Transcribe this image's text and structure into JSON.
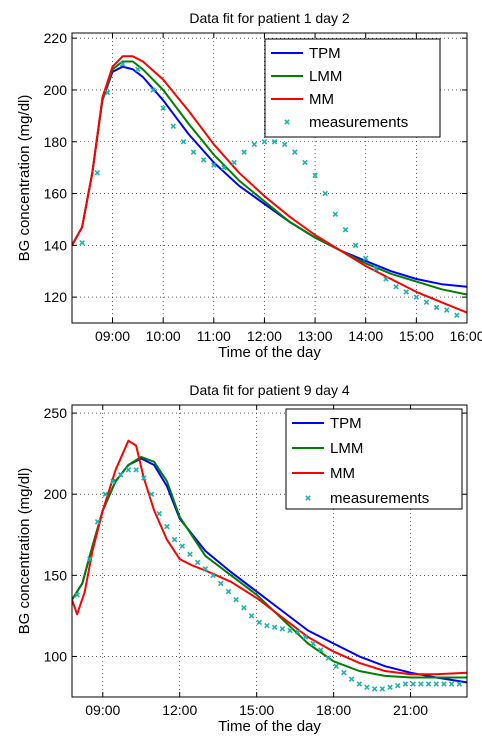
{
  "chart_data": [
    {
      "type": "line",
      "title": "Data fit for patient 1 day 2",
      "xlabel": "Time of the day",
      "ylabel": "BG concentration (mg/dl)",
      "xlim": [
        8.2,
        16.0
      ],
      "ylim": [
        110,
        222
      ],
      "xticks": [
        9,
        10,
        11,
        12,
        13,
        14,
        15,
        16
      ],
      "xtick_labels": [
        "09:00",
        "10:00",
        "11:00",
        "12:00",
        "13:00",
        "14:00",
        "15:00",
        "16:00"
      ],
      "yticks": [
        120,
        140,
        160,
        180,
        200,
        220
      ],
      "grid": true,
      "legend_position": "top-right",
      "series": [
        {
          "name": "TPM",
          "color": "#0000ff",
          "style": "line",
          "x": [
            8.2,
            8.4,
            8.6,
            8.8,
            9.0,
            9.2,
            9.4,
            9.6,
            10.0,
            10.5,
            11.0,
            11.5,
            12.0,
            12.5,
            13.0,
            13.5,
            14.0,
            14.5,
            15.0,
            15.5,
            16.0
          ],
          "y": [
            140,
            147,
            168,
            196,
            207,
            209,
            208,
            205,
            196,
            183,
            172,
            163,
            156,
            149,
            143,
            138,
            134,
            130,
            127,
            125,
            124
          ]
        },
        {
          "name": "LMM",
          "color": "#008000",
          "style": "line",
          "x": [
            8.2,
            8.4,
            8.6,
            8.8,
            9.0,
            9.2,
            9.4,
            9.6,
            10.0,
            10.5,
            11.0,
            11.5,
            12.0,
            12.5,
            13.0,
            13.5,
            14.0,
            14.5,
            15.0,
            15.5,
            16.0
          ],
          "y": [
            140,
            147,
            168,
            196,
            208,
            211,
            211,
            208,
            200,
            187,
            175,
            165,
            157,
            149,
            143,
            138,
            133,
            129,
            126,
            123,
            121
          ]
        },
        {
          "name": "MM",
          "color": "#ff0000",
          "style": "line",
          "x": [
            8.2,
            8.4,
            8.6,
            8.8,
            9.0,
            9.2,
            9.4,
            9.6,
            10.0,
            10.5,
            11.0,
            11.5,
            12.0,
            12.5,
            13.0,
            13.5,
            14.0,
            14.5,
            15.0,
            15.5,
            16.0
          ],
          "y": [
            140,
            147,
            168,
            197,
            209,
            213,
            213,
            211,
            204,
            192,
            179,
            168,
            159,
            151,
            144,
            138,
            132,
            127,
            122,
            118,
            114
          ]
        },
        {
          "name": "measurements",
          "color": "#20b2aa",
          "style": "markers",
          "x": [
            8.4,
            8.7,
            8.9,
            9.2,
            9.5,
            9.8,
            10.0,
            10.2,
            10.4,
            10.6,
            10.8,
            11.0,
            11.2,
            11.4,
            11.6,
            11.8,
            12.0,
            12.2,
            12.4,
            12.6,
            12.8,
            13.0,
            13.2,
            13.4,
            13.6,
            13.8,
            14.0,
            14.2,
            14.4,
            14.6,
            14.8,
            15.0,
            15.2,
            15.4,
            15.6,
            15.8
          ],
          "y": [
            141,
            168,
            199,
            210,
            208,
            200,
            193,
            186,
            180,
            176,
            173,
            171,
            170,
            172,
            176,
            179,
            180,
            180,
            179,
            176,
            172,
            167,
            160,
            152,
            146,
            140,
            135,
            131,
            127,
            124,
            122,
            120,
            118,
            116,
            115,
            113
          ]
        }
      ]
    },
    {
      "type": "line",
      "title": "Data fit for patient 9 day 4",
      "xlabel": "Time of the day",
      "ylabel": "BG concentration (mg/dl)",
      "xlim": [
        7.8,
        23.2
      ],
      "ylim": [
        75,
        255
      ],
      "xticks": [
        9,
        12,
        15,
        18,
        21
      ],
      "xtick_labels": [
        "09:00",
        "12:00",
        "15:00",
        "18:00",
        "21:00"
      ],
      "yticks": [
        100,
        150,
        200,
        250
      ],
      "grid": true,
      "legend_position": "top-right",
      "series": [
        {
          "name": "TPM",
          "color": "#0000ff",
          "style": "line",
          "x": [
            7.8,
            8.2,
            8.6,
            9.0,
            9.5,
            10.0,
            10.5,
            11.0,
            11.5,
            12.0,
            13.0,
            14.0,
            15.0,
            16.0,
            17.0,
            18.0,
            19.0,
            20.0,
            21.0,
            22.0,
            23.2
          ],
          "y": [
            135,
            145,
            168,
            190,
            208,
            218,
            222,
            218,
            205,
            185,
            165,
            152,
            140,
            128,
            116,
            108,
            100,
            94,
            90,
            87,
            84
          ]
        },
        {
          "name": "LMM",
          "color": "#008000",
          "style": "line",
          "x": [
            7.8,
            8.2,
            8.6,
            9.0,
            9.5,
            10.0,
            10.5,
            11.0,
            11.5,
            12.0,
            13.0,
            14.0,
            15.0,
            16.0,
            17.0,
            18.0,
            19.0,
            20.0,
            21.0,
            22.0,
            23.2
          ],
          "y": [
            135,
            145,
            168,
            190,
            208,
            218,
            223,
            220,
            208,
            186,
            162,
            150,
            138,
            123,
            108,
            97,
            91,
            88,
            87,
            87,
            87
          ]
        },
        {
          "name": "MM",
          "color": "#ff0000",
          "style": "line",
          "x": [
            7.8,
            8.0,
            8.3,
            8.6,
            9.0,
            9.5,
            10.0,
            10.3,
            10.6,
            11.0,
            11.5,
            12.0,
            12.5,
            13.0,
            14.0,
            15.0,
            16.0,
            17.0,
            18.0,
            19.0,
            20.0,
            21.0,
            22.0,
            23.2
          ],
          "y": [
            135,
            126,
            140,
            165,
            190,
            215,
            233,
            230,
            210,
            190,
            172,
            160,
            156,
            153,
            146,
            136,
            124,
            112,
            103,
            96,
            91,
            89,
            89,
            90
          ]
        },
        {
          "name": "measurements",
          "color": "#20b2aa",
          "style": "markers",
          "x": [
            8.0,
            8.5,
            8.8,
            9.1,
            9.4,
            9.7,
            10.0,
            10.3,
            10.6,
            10.9,
            11.2,
            11.5,
            11.8,
            12.1,
            12.4,
            12.7,
            13.0,
            13.3,
            13.6,
            13.9,
            14.2,
            14.5,
            14.8,
            15.1,
            15.4,
            15.7,
            16.0,
            16.3,
            16.6,
            16.9,
            17.2,
            17.5,
            17.8,
            18.1,
            18.4,
            18.7,
            19.0,
            19.3,
            19.6,
            19.9,
            20.2,
            20.5,
            20.8,
            21.1,
            21.4,
            21.7,
            22.0,
            22.3,
            22.6,
            22.9
          ],
          "y": [
            138,
            160,
            183,
            200,
            208,
            212,
            215,
            215,
            210,
            200,
            188,
            180,
            172,
            168,
            163,
            158,
            154,
            150,
            145,
            140,
            135,
            130,
            125,
            121,
            119,
            118,
            117,
            116,
            115,
            112,
            108,
            104,
            99,
            94,
            90,
            86,
            83,
            81,
            80,
            80,
            81,
            82,
            83,
            83,
            83,
            83,
            83,
            83,
            83,
            83
          ]
        }
      ]
    }
  ]
}
